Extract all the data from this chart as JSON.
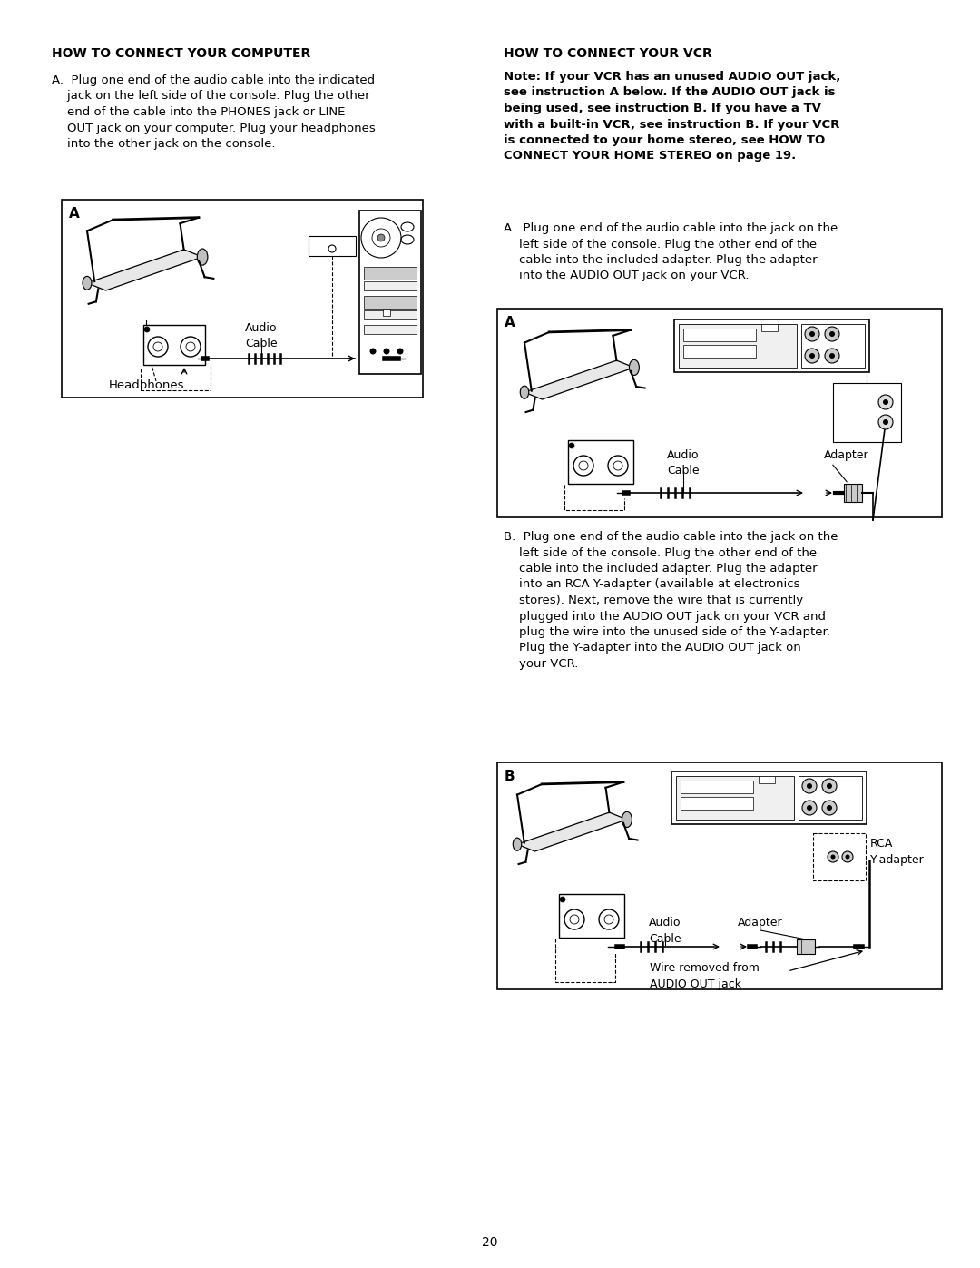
{
  "page_number": "20",
  "bg": "#ffffff",
  "tc": "#000000",
  "left_title": "HOW TO CONNECT YOUR COMPUTER",
  "left_a": "A.  Plug one end of the audio cable into the indicated\n    jack on the left side of the console. Plug the other\n    end of the cable into the PHONES jack or LINE\n    OUT jack on your computer. Plug your headphones\n    into the other jack on the console.",
  "right_title": "HOW TO CONNECT YOUR VCR",
  "right_note": "Note: If your VCR has an unused AUDIO OUT jack,\nsee instruction A below. If the AUDIO OUT jack is\nbeing used, see instruction B. If you have a TV\nwith a built-in VCR, see instruction B. If your VCR\nis connected to your home stereo, see HOW TO\nCONNECT YOUR HOME STEREO on page 19.",
  "right_a": "A.  Plug one end of the audio cable into the jack on the\n    left side of the console. Plug the other end of the\n    cable into the included adapter. Plug the adapter\n    into the AUDIO OUT jack on your VCR.",
  "right_b": "B.  Plug one end of the audio cable into the jack on the\n    left side of the console. Plug the other end of the\n    cable into the included adapter. Plug the adapter\n    into an RCA Y-adapter (available at electronics\n    stores). Next, remove the wire that is currently\n    plugged into the AUDIO OUT jack on your VCR and\n    plug the wire into the unused side of the Y-adapter.\n    Plug the Y-adapter into the AUDIO OUT jack on\n    your VCR."
}
